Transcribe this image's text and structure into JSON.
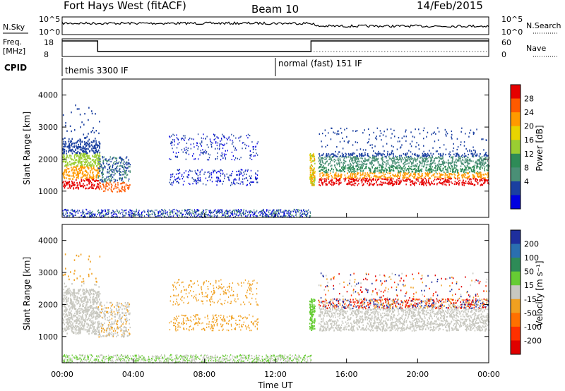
{
  "header": {
    "station": "Fort Hays West (fitACF)",
    "beam": "Beam 10",
    "date": "14/Feb/2015"
  },
  "strips": {
    "nsky_label": "N.Sky",
    "nsky_ticks": [
      "10^5",
      "10^0"
    ],
    "nsearch_label": "N.Search",
    "freq_label": "Freq.",
    "freq_unit": "[MHz]",
    "freq_ticks": [
      "18",
      "8"
    ],
    "nave_ticks": [
      "60",
      "0"
    ],
    "nave_label": "Nave",
    "cpid_label": "CPID",
    "cpid_segments": [
      {
        "label": "themis 3300 IF",
        "start_h": 0
      },
      {
        "label": "normal (fast) 151 IF",
        "start_h": 12
      }
    ],
    "freq_steps": [
      {
        "from_h": 0,
        "to_h": 2,
        "level": "high"
      },
      {
        "from_h": 2,
        "to_h": 14,
        "level": "low"
      },
      {
        "from_h": 14,
        "to_h": 24,
        "level": "high"
      }
    ]
  },
  "chart_data": [
    {
      "type": "heatmap",
      "name": "power-panel",
      "ylabel": "Slant Range [km]",
      "x_ticks": [
        "00:00",
        "04:00",
        "08:00",
        "12:00",
        "16:00",
        "20:00",
        "00:00"
      ],
      "x_range_h": [
        0,
        24
      ],
      "y_ticks": [
        1000,
        2000,
        3000,
        4000
      ],
      "y_range_km": [
        180,
        4500
      ],
      "colorbar": {
        "label": "Power [dB]",
        "ticks": [
          "28",
          "24",
          "20",
          "16",
          "12",
          "8",
          "4"
        ],
        "colors": [
          "#e60000",
          "#ff5a00",
          "#ff9a00",
          "#e8d400",
          "#9acd32",
          "#2e8b57",
          "#4a8f76",
          "#1a3fa0",
          "#0000e0"
        ]
      }
    },
    {
      "type": "heatmap",
      "name": "velocity-panel",
      "ylabel": "Slant Range [km]",
      "xlabel": "Time UT",
      "x_ticks": [
        "00:00",
        "04:00",
        "08:00",
        "12:00",
        "16:00",
        "20:00",
        "00:00"
      ],
      "x_range_h": [
        0,
        24
      ],
      "y_ticks": [
        1000,
        2000,
        3000,
        4000
      ],
      "y_range_km": [
        180,
        4500
      ],
      "colorbar": {
        "label": "Velocity [m s⁻¹]",
        "ticks": [
          "200",
          "100",
          "50",
          "15",
          "-15",
          "-50",
          "-100",
          "-200"
        ],
        "colors": [
          "#1e2f9e",
          "#2a6fb0",
          "#2e8b57",
          "#66cc33",
          "#c8c8c0",
          "#f0a020",
          "#ff7000",
          "#ff3000",
          "#e00000"
        ]
      }
    }
  ]
}
